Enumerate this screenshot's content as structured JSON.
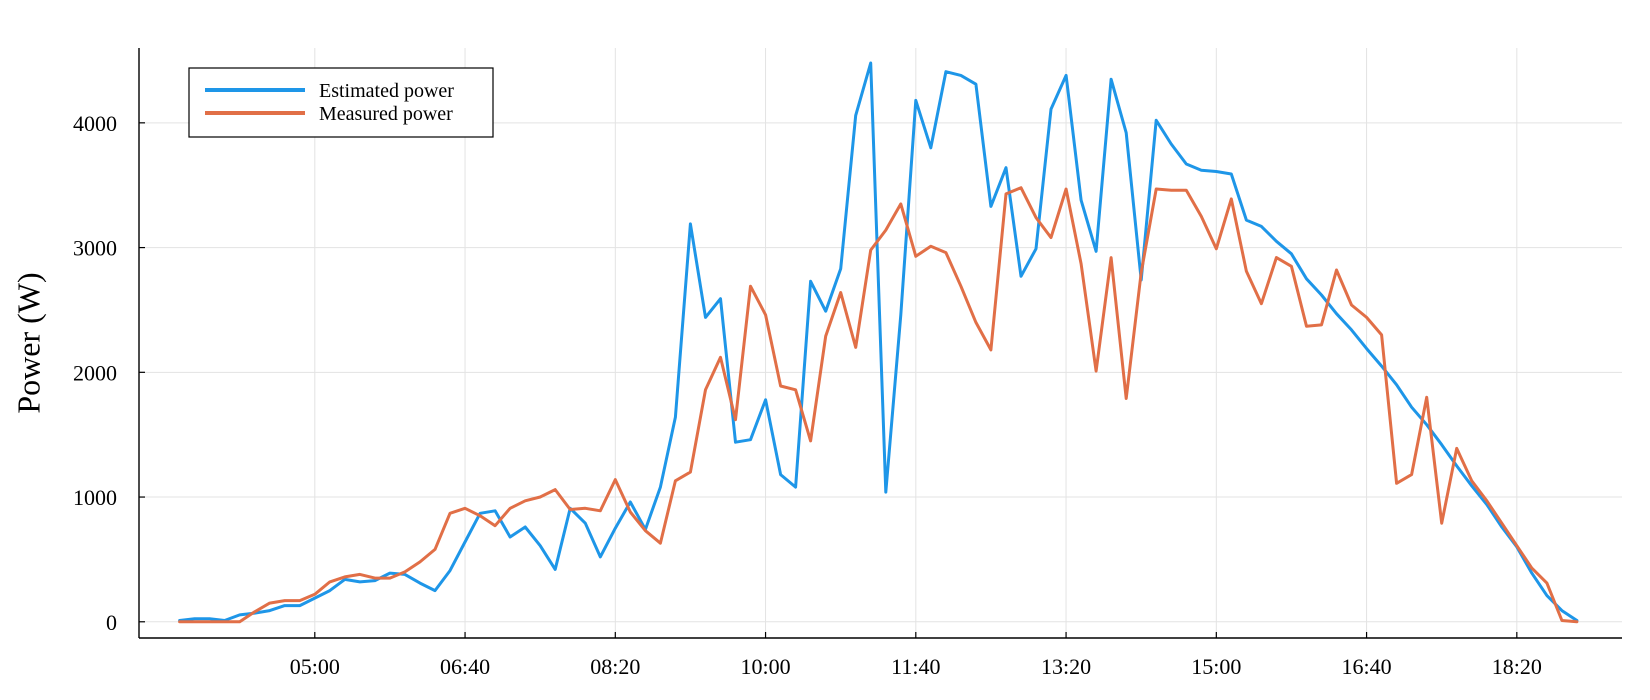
{
  "chart_data": {
    "type": "line",
    "title": "",
    "xlabel": "",
    "ylabel": "Power (W)",
    "x_unit": "time of day (HH:MM)",
    "x_ticks": [
      "05:00",
      "06:40",
      "08:20",
      "10:00",
      "11:40",
      "13:20",
      "15:00",
      "16:40",
      "18:20"
    ],
    "y_ticks": [
      0,
      1000,
      2000,
      3000,
      4000
    ],
    "ylim": [
      -130,
      4600
    ],
    "xlim": [
      "03:03",
      "19:30"
    ],
    "grid": true,
    "legend_position": "top-left",
    "x": [
      "03:30",
      "03:40",
      "03:50",
      "04:00",
      "04:10",
      "04:20",
      "04:30",
      "04:40",
      "04:50",
      "05:00",
      "05:10",
      "05:20",
      "05:30",
      "05:40",
      "05:50",
      "06:00",
      "06:10",
      "06:20",
      "06:30",
      "06:40",
      "06:50",
      "07:00",
      "07:10",
      "07:20",
      "07:30",
      "07:40",
      "07:50",
      "08:00",
      "08:10",
      "08:20",
      "08:30",
      "08:40",
      "08:50",
      "09:00",
      "09:10",
      "09:20",
      "09:30",
      "09:40",
      "09:50",
      "10:00",
      "10:10",
      "10:20",
      "10:30",
      "10:40",
      "10:50",
      "11:00",
      "11:10",
      "11:20",
      "11:30",
      "11:40",
      "11:50",
      "12:00",
      "12:10",
      "12:20",
      "12:30",
      "12:40",
      "12:50",
      "13:00",
      "13:10",
      "13:20",
      "13:30",
      "13:40",
      "13:50",
      "14:00",
      "14:10",
      "14:20",
      "14:30",
      "14:40",
      "14:50",
      "15:00",
      "15:10",
      "15:20",
      "15:30",
      "15:40",
      "15:50",
      "16:00",
      "16:10",
      "16:20",
      "16:30",
      "16:40",
      "16:50",
      "17:00",
      "17:10",
      "17:20",
      "17:30",
      "17:40",
      "17:50",
      "18:00",
      "18:10",
      "18:20",
      "18:30",
      "18:40",
      "18:50",
      "19:00"
    ],
    "series": [
      {
        "name": "Estimated power",
        "color": "#1e96e8",
        "values": [
          10,
          25,
          25,
          10,
          55,
          70,
          90,
          130,
          130,
          190,
          250,
          340,
          320,
          330,
          390,
          380,
          310,
          250,
          410,
          640,
          870,
          890,
          680,
          760,
          610,
          420,
          910,
          790,
          520,
          750,
          960,
          740,
          1080,
          1640,
          3190,
          2440,
          2590,
          1440,
          1460,
          1780,
          1180,
          1080,
          2730,
          2490,
          2830,
          4060,
          4480,
          1040,
          2460,
          4180,
          3800,
          4410,
          4380,
          4310,
          3330,
          3640,
          2770,
          2990,
          4110,
          4380,
          3380,
          2970,
          4350,
          3920,
          2740,
          4020,
          3830,
          3670,
          3620,
          3610,
          3590,
          3220,
          3170,
          3050,
          2950,
          2750,
          2620,
          2470,
          2340,
          2190,
          2050,
          1900,
          1720,
          1580,
          1420,
          1250,
          1090,
          940,
          760,
          600,
          390,
          210,
          90,
          10
        ]
      },
      {
        "name": "Measured power",
        "color": "#e16f47",
        "values": [
          0,
          0,
          0,
          0,
          0,
          80,
          150,
          170,
          170,
          220,
          320,
          360,
          380,
          350,
          350,
          400,
          480,
          580,
          870,
          910,
          850,
          770,
          910,
          970,
          1000,
          1060,
          900,
          910,
          890,
          1140,
          880,
          730,
          630,
          1130,
          1200,
          1860,
          2120,
          1620,
          2690,
          2460,
          1890,
          1860,
          1450,
          2290,
          2640,
          2200,
          2980,
          3140,
          3350,
          2930,
          3010,
          2960,
          2690,
          2400,
          2180,
          3430,
          3480,
          3240,
          3080,
          3470,
          2870,
          2010,
          2920,
          1790,
          2800,
          3470,
          3460,
          3460,
          3250,
          2990,
          3390,
          2810,
          2550,
          2920,
          2850,
          2370,
          2380,
          2820,
          2540,
          2440,
          2300,
          1110,
          1180,
          1800,
          790,
          1390,
          1130,
          970,
          790,
          610,
          430,
          310,
          10,
          0
        ]
      }
    ]
  }
}
